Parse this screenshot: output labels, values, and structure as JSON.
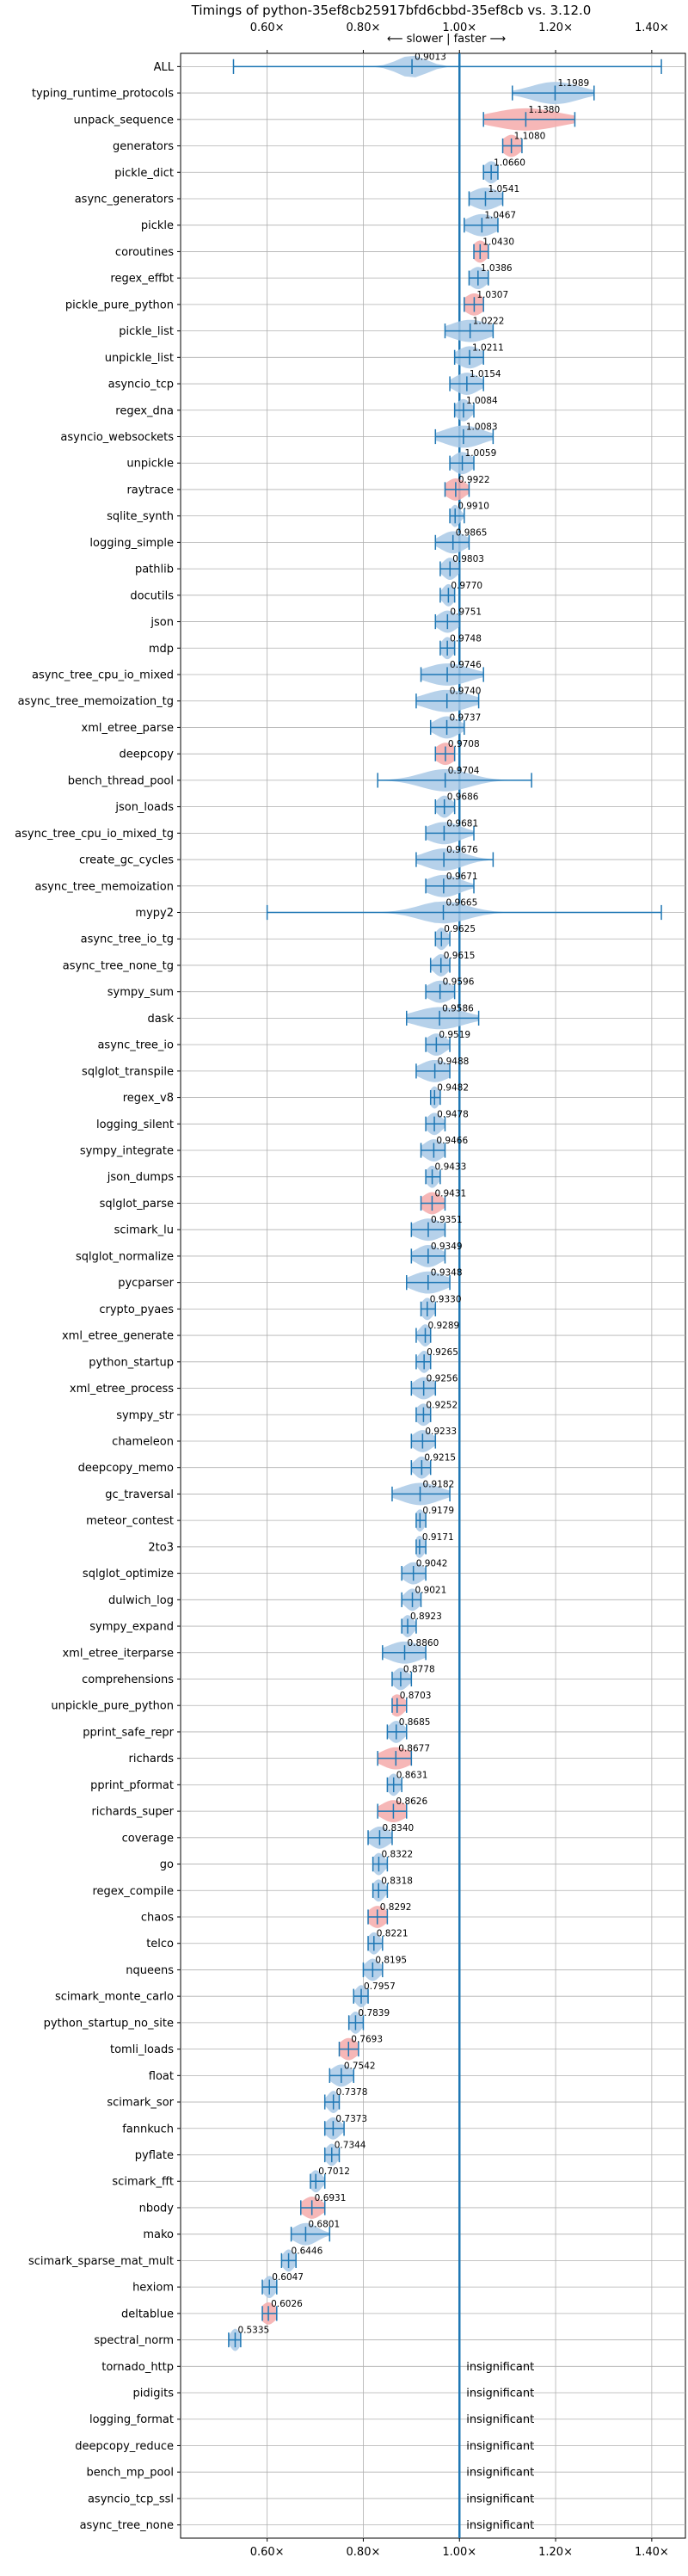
{
  "chart_data": {
    "type": "violin",
    "title": "Timings of python-35ef8cb25917bfd6cbbd-35ef8cb vs. 3.12.0",
    "direction_label": "⟵ slower | faster ⟶",
    "x_ticks": [
      "0.60×",
      "0.80×",
      "1.00×",
      "1.20×",
      "1.40×"
    ],
    "x_tick_values": [
      0.6,
      0.8,
      1.0,
      1.2,
      1.4
    ],
    "xlim": [
      0.42,
      1.47
    ],
    "reference_line": 1.0,
    "grid": true,
    "colors": {
      "default": "#a9c9e6",
      "highlight": "#f4aaaa",
      "line": "#1f77b4",
      "grid": "#b0b0b0"
    },
    "insignificant_label": "insignificant",
    "benchmarks": [
      {
        "name": "ALL",
        "value": 0.9013,
        "min": 0.53,
        "max": 1.42,
        "spread": 0.03,
        "highlight": false
      },
      {
        "name": "typing_runtime_protocols",
        "value": 1.1989,
        "min": 1.11,
        "max": 1.28,
        "spread": 0.05,
        "highlight": false
      },
      {
        "name": "unpack_sequence",
        "value": 1.138,
        "min": 1.05,
        "max": 1.24,
        "spread": 0.07,
        "highlight": true
      },
      {
        "name": "generators",
        "value": 1.108,
        "min": 1.09,
        "max": 1.13,
        "spread": 0.018,
        "highlight": true
      },
      {
        "name": "pickle_dict",
        "value": 1.066,
        "min": 1.05,
        "max": 1.08,
        "spread": 0.015,
        "highlight": false
      },
      {
        "name": "async_generators",
        "value": 1.0541,
        "min": 1.02,
        "max": 1.09,
        "spread": 0.03,
        "highlight": false
      },
      {
        "name": "pickle",
        "value": 1.0467,
        "min": 1.01,
        "max": 1.08,
        "spread": 0.03,
        "highlight": false
      },
      {
        "name": "coroutines",
        "value": 1.043,
        "min": 1.03,
        "max": 1.06,
        "spread": 0.015,
        "highlight": true
      },
      {
        "name": "regex_effbt",
        "value": 1.0386,
        "min": 1.02,
        "max": 1.06,
        "spread": 0.018,
        "highlight": false
      },
      {
        "name": "pickle_pure_python",
        "value": 1.0307,
        "min": 1.01,
        "max": 1.05,
        "spread": 0.02,
        "highlight": true
      },
      {
        "name": "pickle_list",
        "value": 1.0222,
        "min": 0.97,
        "max": 1.07,
        "spread": 0.04,
        "highlight": false
      },
      {
        "name": "unpickle_list",
        "value": 1.0211,
        "min": 0.99,
        "max": 1.05,
        "spread": 0.025,
        "highlight": false
      },
      {
        "name": "asyncio_tcp",
        "value": 1.0154,
        "min": 0.98,
        "max": 1.05,
        "spread": 0.025,
        "highlight": false
      },
      {
        "name": "regex_dna",
        "value": 1.0084,
        "min": 0.99,
        "max": 1.03,
        "spread": 0.015,
        "highlight": false
      },
      {
        "name": "asyncio_websockets",
        "value": 1.0083,
        "min": 0.95,
        "max": 1.07,
        "spread": 0.04,
        "highlight": false
      },
      {
        "name": "unpickle",
        "value": 1.0059,
        "min": 0.98,
        "max": 1.03,
        "spread": 0.02,
        "highlight": false
      },
      {
        "name": "raytrace",
        "value": 0.9922,
        "min": 0.97,
        "max": 1.02,
        "spread": 0.02,
        "highlight": true
      },
      {
        "name": "sqlite_synth",
        "value": 0.991,
        "min": 0.98,
        "max": 1.01,
        "spread": 0.01,
        "highlight": false
      },
      {
        "name": "logging_simple",
        "value": 0.9865,
        "min": 0.95,
        "max": 1.02,
        "spread": 0.025,
        "highlight": false
      },
      {
        "name": "pathlib",
        "value": 0.9803,
        "min": 0.96,
        "max": 1.0,
        "spread": 0.015,
        "highlight": false
      },
      {
        "name": "docutils",
        "value": 0.977,
        "min": 0.96,
        "max": 0.99,
        "spread": 0.012,
        "highlight": false
      },
      {
        "name": "json",
        "value": 0.9751,
        "min": 0.95,
        "max": 1.0,
        "spread": 0.02,
        "highlight": false
      },
      {
        "name": "mdp",
        "value": 0.9748,
        "min": 0.96,
        "max": 0.99,
        "spread": 0.012,
        "highlight": false
      },
      {
        "name": "async_tree_cpu_io_mixed",
        "value": 0.9746,
        "min": 0.92,
        "max": 1.05,
        "spread": 0.045,
        "highlight": false
      },
      {
        "name": "async_tree_memoization_tg",
        "value": 0.974,
        "min": 0.91,
        "max": 1.04,
        "spread": 0.045,
        "highlight": false
      },
      {
        "name": "xml_etree_parse",
        "value": 0.9737,
        "min": 0.94,
        "max": 1.01,
        "spread": 0.025,
        "highlight": false
      },
      {
        "name": "deepcopy",
        "value": 0.9708,
        "min": 0.95,
        "max": 0.99,
        "spread": 0.02,
        "highlight": true
      },
      {
        "name": "bench_thread_pool",
        "value": 0.9704,
        "min": 0.83,
        "max": 1.15,
        "spread": 0.05,
        "highlight": false
      },
      {
        "name": "json_loads",
        "value": 0.9686,
        "min": 0.95,
        "max": 0.99,
        "spread": 0.015,
        "highlight": false
      },
      {
        "name": "async_tree_cpu_io_mixed_tg",
        "value": 0.9681,
        "min": 0.93,
        "max": 1.03,
        "spread": 0.035,
        "highlight": false
      },
      {
        "name": "create_gc_cycles",
        "value": 0.9676,
        "min": 0.91,
        "max": 1.07,
        "spread": 0.04,
        "highlight": false
      },
      {
        "name": "async_tree_memoization",
        "value": 0.9671,
        "min": 0.93,
        "max": 1.03,
        "spread": 0.035,
        "highlight": false
      },
      {
        "name": "mypy2",
        "value": 0.9665,
        "min": 0.6,
        "max": 1.42,
        "spread": 0.05,
        "highlight": false
      },
      {
        "name": "async_tree_io_tg",
        "value": 0.9625,
        "min": 0.95,
        "max": 0.98,
        "spread": 0.012,
        "highlight": false
      },
      {
        "name": "async_tree_none_tg",
        "value": 0.9615,
        "min": 0.94,
        "max": 0.98,
        "spread": 0.015,
        "highlight": false
      },
      {
        "name": "sympy_sum",
        "value": 0.9596,
        "min": 0.93,
        "max": 0.99,
        "spread": 0.025,
        "highlight": false
      },
      {
        "name": "dask",
        "value": 0.9586,
        "min": 0.89,
        "max": 1.04,
        "spread": 0.05,
        "highlight": false
      },
      {
        "name": "async_tree_io",
        "value": 0.9519,
        "min": 0.93,
        "max": 0.98,
        "spread": 0.02,
        "highlight": false
      },
      {
        "name": "sqlglot_transpile",
        "value": 0.9488,
        "min": 0.91,
        "max": 0.98,
        "spread": 0.03,
        "highlight": false
      },
      {
        "name": "regex_v8",
        "value": 0.9482,
        "min": 0.94,
        "max": 0.96,
        "spread": 0.01,
        "highlight": false
      },
      {
        "name": "logging_silent",
        "value": 0.9478,
        "min": 0.93,
        "max": 0.97,
        "spread": 0.015,
        "highlight": false
      },
      {
        "name": "sympy_integrate",
        "value": 0.9466,
        "min": 0.92,
        "max": 0.97,
        "spread": 0.02,
        "highlight": false
      },
      {
        "name": "json_dumps",
        "value": 0.9433,
        "min": 0.93,
        "max": 0.96,
        "spread": 0.012,
        "highlight": false
      },
      {
        "name": "sqlglot_parse",
        "value": 0.9431,
        "min": 0.92,
        "max": 0.97,
        "spread": 0.02,
        "highlight": true
      },
      {
        "name": "scimark_lu",
        "value": 0.9351,
        "min": 0.9,
        "max": 0.97,
        "spread": 0.03,
        "highlight": false
      },
      {
        "name": "sqlglot_normalize",
        "value": 0.9349,
        "min": 0.9,
        "max": 0.97,
        "spread": 0.025,
        "highlight": false
      },
      {
        "name": "pycparser",
        "value": 0.9348,
        "min": 0.89,
        "max": 0.98,
        "spread": 0.035,
        "highlight": false
      },
      {
        "name": "crypto_pyaes",
        "value": 0.933,
        "min": 0.92,
        "max": 0.95,
        "spread": 0.012,
        "highlight": false
      },
      {
        "name": "xml_etree_generate",
        "value": 0.9289,
        "min": 0.91,
        "max": 0.94,
        "spread": 0.012,
        "highlight": false
      },
      {
        "name": "python_startup",
        "value": 0.9265,
        "min": 0.91,
        "max": 0.94,
        "spread": 0.012,
        "highlight": false
      },
      {
        "name": "xml_etree_process",
        "value": 0.9256,
        "min": 0.9,
        "max": 0.95,
        "spread": 0.02,
        "highlight": false
      },
      {
        "name": "sympy_str",
        "value": 0.9252,
        "min": 0.91,
        "max": 0.94,
        "spread": 0.015,
        "highlight": false
      },
      {
        "name": "chameleon",
        "value": 0.9233,
        "min": 0.9,
        "max": 0.95,
        "spread": 0.02,
        "highlight": false
      },
      {
        "name": "deepcopy_memo",
        "value": 0.9215,
        "min": 0.9,
        "max": 0.94,
        "spread": 0.015,
        "highlight": false
      },
      {
        "name": "gc_traversal",
        "value": 0.9182,
        "min": 0.86,
        "max": 0.98,
        "spread": 0.04,
        "highlight": false
      },
      {
        "name": "meteor_contest",
        "value": 0.9179,
        "min": 0.91,
        "max": 0.93,
        "spread": 0.01,
        "highlight": false
      },
      {
        "name": "2to3",
        "value": 0.9171,
        "min": 0.91,
        "max": 0.93,
        "spread": 0.01,
        "highlight": false
      },
      {
        "name": "sqlglot_optimize",
        "value": 0.9042,
        "min": 0.88,
        "max": 0.93,
        "spread": 0.02,
        "highlight": false
      },
      {
        "name": "dulwich_log",
        "value": 0.9021,
        "min": 0.88,
        "max": 0.92,
        "spread": 0.015,
        "highlight": false
      },
      {
        "name": "sympy_expand",
        "value": 0.8923,
        "min": 0.88,
        "max": 0.91,
        "spread": 0.012,
        "highlight": false
      },
      {
        "name": "xml_etree_iterparse",
        "value": 0.886,
        "min": 0.84,
        "max": 0.93,
        "spread": 0.035,
        "highlight": false
      },
      {
        "name": "comprehensions",
        "value": 0.8778,
        "min": 0.86,
        "max": 0.9,
        "spread": 0.015,
        "highlight": false
      },
      {
        "name": "unpickle_pure_python",
        "value": 0.8703,
        "min": 0.86,
        "max": 0.89,
        "spread": 0.015,
        "highlight": true
      },
      {
        "name": "pprint_safe_repr",
        "value": 0.8685,
        "min": 0.85,
        "max": 0.89,
        "spread": 0.015,
        "highlight": false
      },
      {
        "name": "richards",
        "value": 0.8677,
        "min": 0.83,
        "max": 0.9,
        "spread": 0.03,
        "highlight": true
      },
      {
        "name": "pprint_pformat",
        "value": 0.8631,
        "min": 0.85,
        "max": 0.88,
        "spread": 0.012,
        "highlight": false
      },
      {
        "name": "richards_super",
        "value": 0.8626,
        "min": 0.83,
        "max": 0.89,
        "spread": 0.025,
        "highlight": true
      },
      {
        "name": "coverage",
        "value": 0.834,
        "min": 0.81,
        "max": 0.86,
        "spread": 0.02,
        "highlight": false
      },
      {
        "name": "go",
        "value": 0.8322,
        "min": 0.82,
        "max": 0.85,
        "spread": 0.012,
        "highlight": false
      },
      {
        "name": "regex_compile",
        "value": 0.8318,
        "min": 0.82,
        "max": 0.85,
        "spread": 0.012,
        "highlight": false
      },
      {
        "name": "chaos",
        "value": 0.8292,
        "min": 0.81,
        "max": 0.85,
        "spread": 0.018,
        "highlight": true
      },
      {
        "name": "telco",
        "value": 0.8221,
        "min": 0.81,
        "max": 0.84,
        "spread": 0.012,
        "highlight": false
      },
      {
        "name": "nqueens",
        "value": 0.8195,
        "min": 0.8,
        "max": 0.84,
        "spread": 0.015,
        "highlight": false
      },
      {
        "name": "scimark_monte_carlo",
        "value": 0.7957,
        "min": 0.78,
        "max": 0.81,
        "spread": 0.012,
        "highlight": false
      },
      {
        "name": "python_startup_no_site",
        "value": 0.7839,
        "min": 0.77,
        "max": 0.8,
        "spread": 0.012,
        "highlight": false
      },
      {
        "name": "tomli_loads",
        "value": 0.7693,
        "min": 0.75,
        "max": 0.79,
        "spread": 0.018,
        "highlight": true
      },
      {
        "name": "float",
        "value": 0.7542,
        "min": 0.73,
        "max": 0.78,
        "spread": 0.02,
        "highlight": false
      },
      {
        "name": "scimark_sor",
        "value": 0.7378,
        "min": 0.72,
        "max": 0.75,
        "spread": 0.012,
        "highlight": false
      },
      {
        "name": "fannkuch",
        "value": 0.7373,
        "min": 0.72,
        "max": 0.76,
        "spread": 0.015,
        "highlight": false
      },
      {
        "name": "pyflate",
        "value": 0.7344,
        "min": 0.72,
        "max": 0.75,
        "spread": 0.012,
        "highlight": false
      },
      {
        "name": "scimark_fft",
        "value": 0.7012,
        "min": 0.69,
        "max": 0.72,
        "spread": 0.012,
        "highlight": false
      },
      {
        "name": "nbody",
        "value": 0.6931,
        "min": 0.67,
        "max": 0.72,
        "spread": 0.02,
        "highlight": true
      },
      {
        "name": "mako",
        "value": 0.6801,
        "min": 0.65,
        "max": 0.73,
        "spread": 0.025,
        "highlight": false
      },
      {
        "name": "scimark_sparse_mat_mult",
        "value": 0.6446,
        "min": 0.63,
        "max": 0.66,
        "spread": 0.012,
        "highlight": false
      },
      {
        "name": "hexiom",
        "value": 0.6047,
        "min": 0.59,
        "max": 0.62,
        "spread": 0.012,
        "highlight": false
      },
      {
        "name": "deltablue",
        "value": 0.6026,
        "min": 0.59,
        "max": 0.62,
        "spread": 0.015,
        "highlight": true
      },
      {
        "name": "spectral_norm",
        "value": 0.5335,
        "min": 0.52,
        "max": 0.545,
        "spread": 0.01,
        "highlight": false
      },
      {
        "name": "tornado_http",
        "insignificant": true
      },
      {
        "name": "pidigits",
        "insignificant": true
      },
      {
        "name": "logging_format",
        "insignificant": true
      },
      {
        "name": "deepcopy_reduce",
        "insignificant": true
      },
      {
        "name": "bench_mp_pool",
        "insignificant": true
      },
      {
        "name": "asyncio_tcp_ssl",
        "insignificant": true
      },
      {
        "name": "async_tree_none",
        "insignificant": true
      }
    ]
  }
}
